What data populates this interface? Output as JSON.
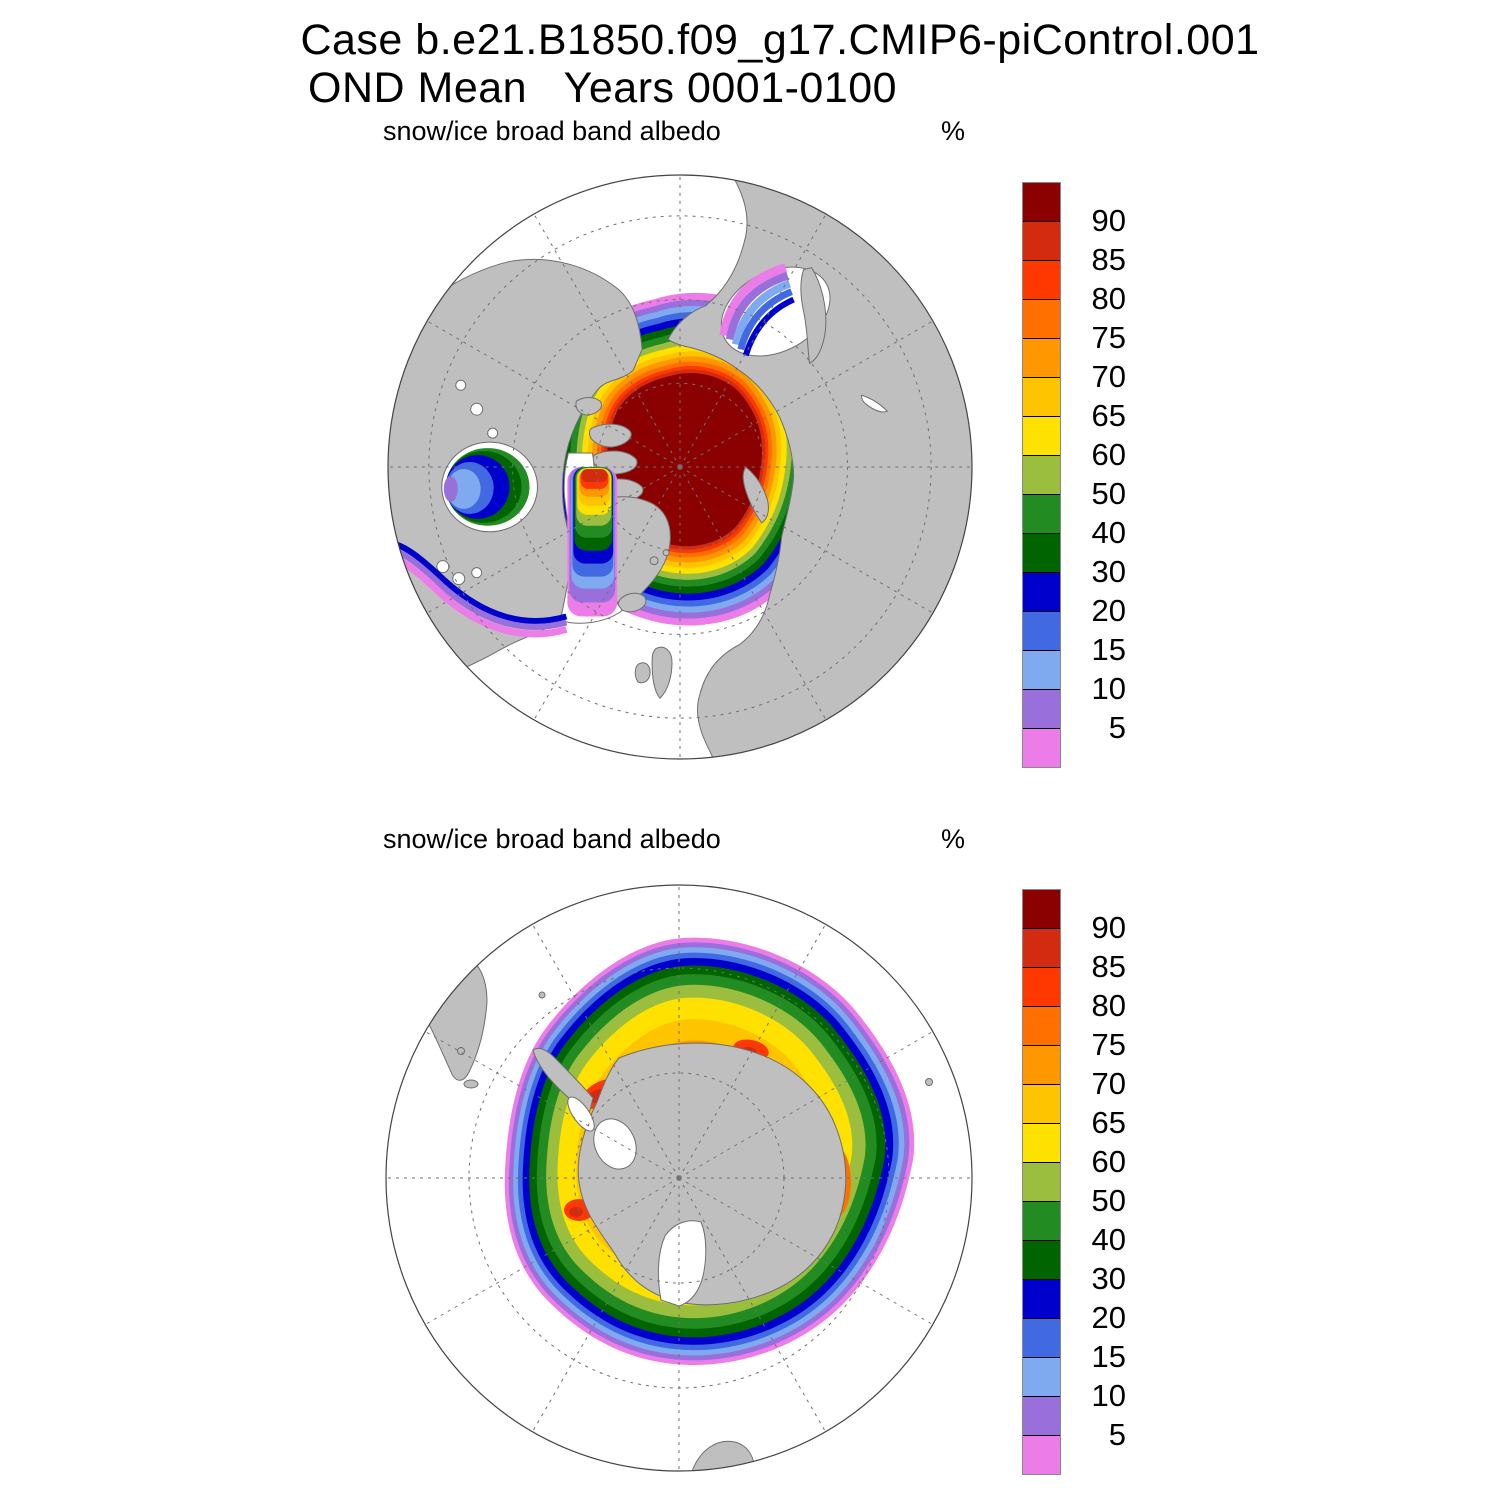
{
  "header": {
    "title_line1": "Case b.e21.B1850.f09_g17.CMIP6-piControl.001",
    "title_line2": "OND Mean   Years 0001-0100"
  },
  "panels": [
    {
      "id": "north",
      "subtitle_left": "snow/ice broad band albedo",
      "subtitle_right": "%"
    },
    {
      "id": "south",
      "subtitle_left": "snow/ice broad band albedo",
      "subtitle_right": "%"
    }
  ],
  "colorbar": {
    "color_keys_top_to_bottom": [
      "gt90",
      "b85",
      "b80",
      "b75",
      "b70",
      "b65",
      "b60",
      "b50",
      "b40",
      "b30",
      "b20",
      "b15",
      "b10",
      "b5",
      "lt5"
    ],
    "tick_labels_top_to_bottom": [
      "90",
      "85",
      "80",
      "75",
      "70",
      "65",
      "60",
      "50",
      "40",
      "30",
      "20",
      "15",
      "10",
      "5"
    ]
  },
  "palette": {
    "lt5": "#EC7CE8",
    "b5": "#9970DB",
    "b10": "#80AAF0",
    "b15": "#4169E1",
    "b20": "#0000CD",
    "b30": "#006400",
    "b40": "#228B22",
    "b50": "#9CBE3F",
    "b60": "#FFE100",
    "b65": "#FFC400",
    "b70": "#FF9800",
    "b75": "#FF7000",
    "b80": "#FF3800",
    "b85": "#D22B10",
    "gt90": "#8B0000"
  },
  "colors": {
    "land": "#BFBFBF",
    "coast": "#6E6E6E",
    "grid": "#707070",
    "ocean": "#FFFFFF",
    "map_outline": "#444444"
  },
  "chart_data": {
    "type": "heatmap",
    "title": "Case b.e21.B1850.f09_g17.CMIP6-piControl.001",
    "subtitle": "OND Mean   Years 0001-0100",
    "variable": "snow/ice broad band albedo",
    "units": "%",
    "season": "OND",
    "years": "0001-0100",
    "contour_levels": [
      5,
      10,
      15,
      20,
      30,
      40,
      50,
      60,
      65,
      70,
      75,
      80,
      85,
      90
    ],
    "palette_low_to_high": [
      "#EC7CE8",
      "#9970DB",
      "#80AAF0",
      "#4169E1",
      "#0000CD",
      "#006400",
      "#228B22",
      "#9CBE3F",
      "#FFE100",
      "#FFC400",
      "#FF9800",
      "#FF7000",
      "#FF3800",
      "#D22B10",
      "#8B0000"
    ],
    "legend_position": "right",
    "panels": [
      {
        "hemisphere": "Northern",
        "projection": "polar stereographic",
        "field_summary": "Central Arctic Ocean pack albedo >90%; narrow 60-85% fringes along Chukchi, Laptev and Kara seas; bands descending 60% to <5% across Barents Sea and along East Greenland / Fram Strait; Baffin Bay 5-85% pocket; Hudson Bay 10-40% (low west, higher east); Bering Sea and Sea of Okhotsk coastal fringes 5-30%; open North Atlantic and North Pacific ice free (white)"
      },
      {
        "hemisphere": "Southern",
        "projection": "polar stereographic",
        "field_summary": "Circumpolar sea-ice ring around Antarctica: 70-85% with small >85% patches at the coast, broad 60-75% belt (widest in Weddell sector), then 50, 40, 30 green bands, 20-30 dark blue band, 15/10 blue bands, 5-10 violet and <5 magenta at the outer ice edge near 55-60S; interior continent gray with white Ross and Ronne ice shelves"
      }
    ]
  }
}
